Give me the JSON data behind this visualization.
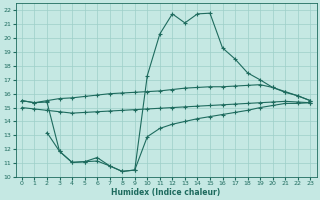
{
  "xlabel": "Humidex (Indice chaleur)",
  "bg_color": "#c5e8e3",
  "line_color": "#1e6b5e",
  "grid_color": "#9ecfc8",
  "xlim": [
    -0.5,
    23.5
  ],
  "ylim": [
    10,
    22.5
  ],
  "yticks": [
    10,
    11,
    12,
    13,
    14,
    15,
    16,
    17,
    18,
    19,
    20,
    21,
    22
  ],
  "xticks": [
    0,
    1,
    2,
    3,
    4,
    5,
    6,
    7,
    8,
    9,
    10,
    11,
    12,
    13,
    14,
    15,
    16,
    17,
    18,
    19,
    20,
    21,
    22,
    23
  ],
  "line1_x": [
    0,
    1,
    2,
    3,
    4,
    5,
    6,
    7,
    8,
    9,
    10,
    11,
    12,
    13,
    14,
    15,
    16,
    17,
    18,
    19,
    20,
    21,
    22,
    23
  ],
  "line1_y": [
    15.5,
    15.35,
    15.5,
    15.65,
    15.7,
    15.8,
    15.9,
    16.0,
    16.05,
    16.1,
    16.15,
    16.2,
    16.3,
    16.4,
    16.45,
    16.5,
    16.5,
    16.55,
    16.6,
    16.65,
    16.45,
    16.15,
    15.85,
    15.5
  ],
  "line2_x": [
    0,
    1,
    2,
    3,
    4,
    5,
    6,
    7,
    8,
    9,
    10,
    11,
    12,
    13,
    14,
    15,
    16,
    17,
    18,
    19,
    20,
    21,
    22,
    23
  ],
  "line2_y": [
    15.0,
    14.9,
    14.8,
    14.7,
    14.6,
    14.65,
    14.7,
    14.75,
    14.8,
    14.85,
    14.9,
    14.95,
    15.0,
    15.05,
    15.1,
    15.15,
    15.2,
    15.25,
    15.3,
    15.35,
    15.4,
    15.45,
    15.4,
    15.35
  ],
  "line3_x": [
    0,
    1,
    2,
    3,
    4,
    5,
    6,
    7,
    8,
    9,
    10,
    11,
    12,
    13,
    14,
    15,
    16,
    17,
    18,
    19,
    20,
    21,
    22,
    23
  ],
  "line3_y": [
    15.5,
    15.35,
    15.4,
    11.85,
    11.05,
    11.1,
    11.15,
    10.8,
    10.4,
    10.5,
    17.3,
    20.3,
    21.75,
    21.1,
    21.75,
    21.8,
    19.3,
    18.5,
    17.5,
    17.0,
    16.45,
    16.1,
    15.85,
    15.5
  ],
  "line4_x": [
    2,
    3,
    4,
    5,
    6,
    7,
    8,
    9,
    10,
    11,
    12,
    13,
    14,
    15,
    16,
    17,
    18,
    19,
    20,
    21,
    22,
    23
  ],
  "line4_y": [
    13.2,
    11.85,
    11.05,
    11.1,
    11.4,
    10.8,
    10.4,
    10.5,
    12.9,
    13.5,
    13.8,
    14.0,
    14.2,
    14.35,
    14.5,
    14.65,
    14.8,
    15.0,
    15.15,
    15.3,
    15.3,
    15.35
  ]
}
